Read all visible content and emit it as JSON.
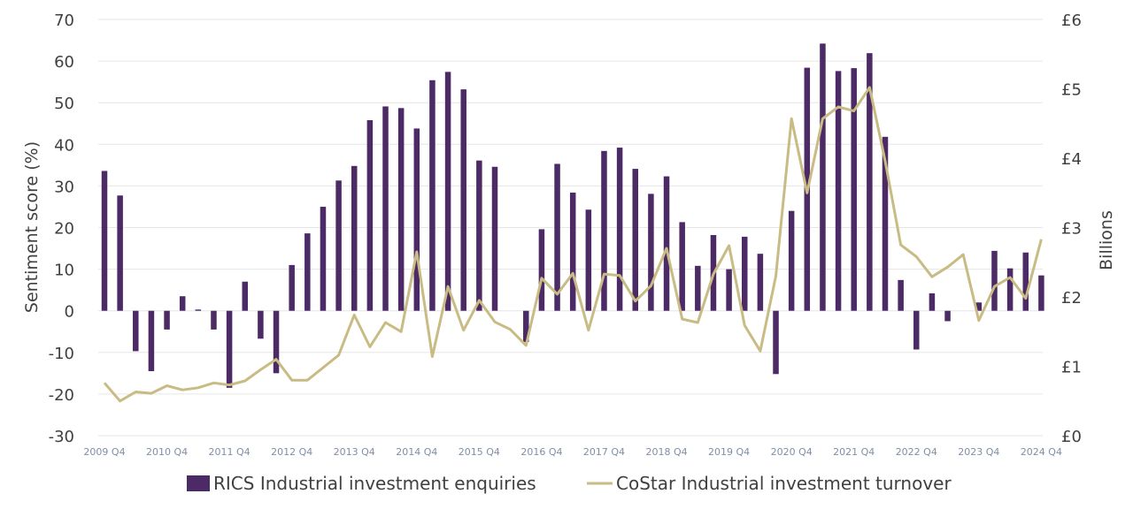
{
  "chart_data": {
    "type": "bar+line",
    "ylabel_left": "Sentiment score (%)",
    "ylabel_right": "Billions",
    "ylim_left": [
      -30,
      70
    ],
    "yticks_left": [
      "70",
      "60",
      "50",
      "40",
      "30",
      "20",
      "10",
      "0",
      "-10",
      "-20",
      "-30"
    ],
    "ylim_right": [
      0,
      6
    ],
    "yticks_right": [
      "£6",
      "£5",
      "£4",
      "£3",
      "£2",
      "£1",
      "£0"
    ],
    "x_tick_labels": [
      "2009 Q4",
      "2010 Q4",
      "2011 Q4",
      "2012 Q4",
      "2013 Q4",
      "2014 Q4",
      "2015 Q4",
      "2016 Q4",
      "2017 Q4",
      "2018 Q4",
      "2019 Q4",
      "2020 Q4",
      "2021 Q4",
      "2022 Q4",
      "2023 Q4",
      "2024 Q4"
    ],
    "grid": "horizontal",
    "legend_position": "bottom",
    "series": [
      {
        "name": "RICS Industrial investment enquiries",
        "type": "bar",
        "axis": "left",
        "color": "#4b2a66",
        "values": [
          33.6,
          27.7,
          -9.7,
          -14.5,
          -4.5,
          3.5,
          0.3,
          -4.5,
          -18.5,
          7.0,
          -6.7,
          -15.0,
          11.0,
          18.6,
          25.0,
          31.3,
          34.8,
          45.8,
          49.1,
          48.7,
          43.8,
          55.4,
          57.4,
          53.2,
          36.1,
          34.6,
          0.0,
          -7.5,
          19.6,
          35.3,
          28.4,
          24.3,
          38.4,
          39.2,
          34.1,
          28.1,
          32.3,
          21.3,
          10.8,
          18.2,
          10.0,
          17.8,
          13.7,
          -15.2,
          24.0,
          58.4,
          64.2,
          57.6,
          58.3,
          61.9,
          41.8,
          7.4,
          -9.3,
          4.2,
          -2.5,
          0.0,
          2.0,
          14.4,
          10.2,
          14.0,
          8.5
        ]
      },
      {
        "name": "CoStar Industrial investment turnover",
        "type": "line",
        "axis": "right",
        "color": "#c9bb84",
        "values": [
          0.76,
          0.5,
          0.63,
          0.61,
          0.72,
          0.66,
          0.69,
          0.76,
          0.73,
          0.79,
          0.95,
          1.1,
          0.8,
          0.8,
          0.98,
          1.16,
          1.74,
          1.28,
          1.63,
          1.5,
          2.65,
          1.14,
          2.15,
          1.52,
          1.95,
          1.64,
          1.53,
          1.3,
          2.27,
          2.04,
          2.34,
          1.52,
          2.33,
          2.31,
          1.94,
          2.16,
          2.7,
          1.68,
          1.63,
          2.33,
          2.74,
          1.59,
          1.22,
          2.3,
          4.57,
          3.5,
          4.57,
          4.74,
          4.68,
          5.02,
          3.96,
          2.75,
          2.58,
          2.29,
          2.43,
          2.61,
          1.66,
          2.15,
          2.28,
          1.98,
          2.83
        ]
      }
    ]
  }
}
